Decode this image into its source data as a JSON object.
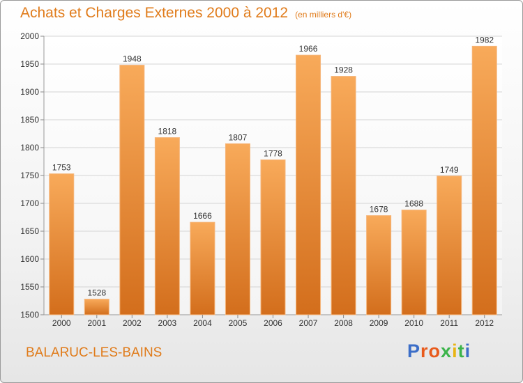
{
  "page": {
    "title": "Achats et Charges Externes 2000 à 2012",
    "unit": "(en milliers d'€)",
    "commune": "BALARUC-LES-BAINS",
    "brand": "Proxiti",
    "brand_colors": [
      "#3c6ec8",
      "#e85a1c",
      "#e85a1c",
      "#3cb44b",
      "#e8b414",
      "#3cb44b",
      "#3c6ec8"
    ]
  },
  "colors": {
    "title": "#e07b1a",
    "bar_top": "#f8aa5a",
    "bar_bottom": "#d36e1c",
    "grid": "#d4d4d4",
    "axis_text": "#333333"
  },
  "chart_data": {
    "type": "bar",
    "title": "Achats et Charges Externes 2000 à 2012",
    "subtitle": "(en milliers d'€)",
    "categories": [
      "2000",
      "2001",
      "2002",
      "2003",
      "2004",
      "2005",
      "2006",
      "2007",
      "2008",
      "2009",
      "2010",
      "2011",
      "2012"
    ],
    "values": [
      1753,
      1528,
      1948,
      1818,
      1666,
      1807,
      1778,
      1966,
      1928,
      1678,
      1688,
      1749,
      1982
    ],
    "ylim": [
      1500,
      2000
    ],
    "yticks": [
      1500,
      1550,
      1600,
      1650,
      1700,
      1750,
      1800,
      1850,
      1900,
      1950,
      2000
    ],
    "grid": true,
    "data_labels": true
  }
}
